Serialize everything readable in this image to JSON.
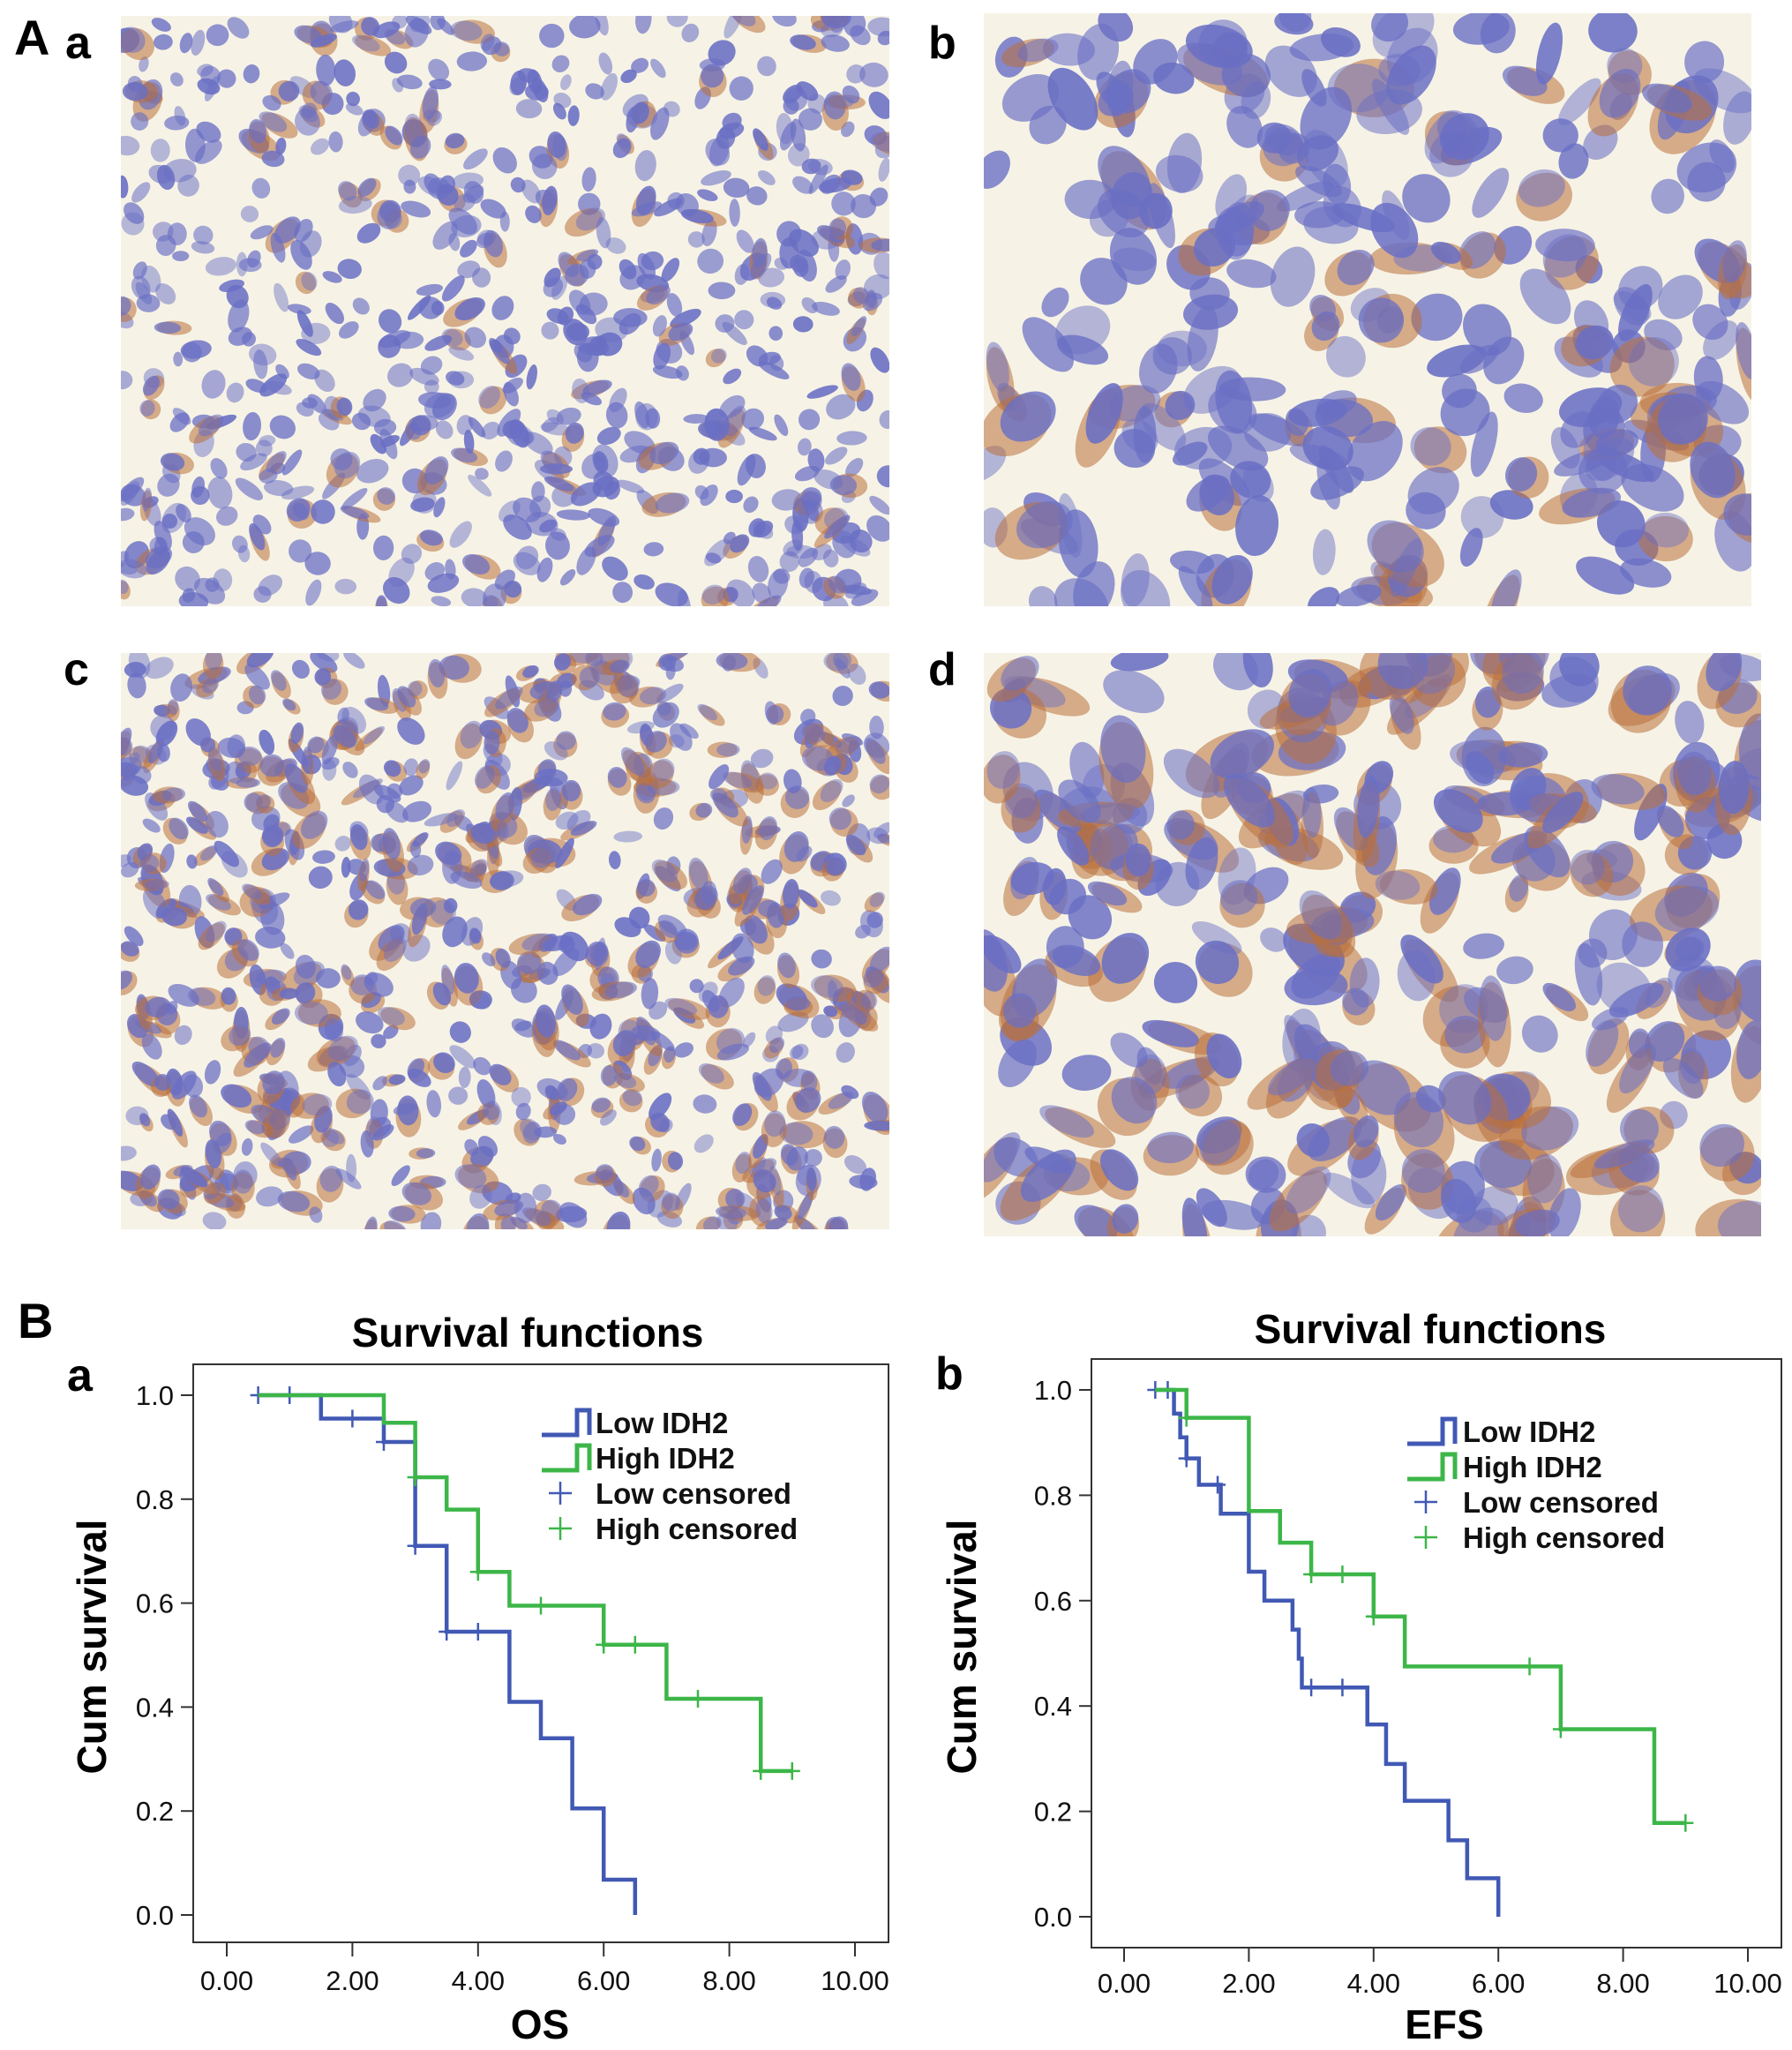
{
  "figure": {
    "panel_A_label": "A",
    "panel_B_label": "B",
    "micrographs": [
      {
        "label": "a",
        "brown_fraction": 0.15,
        "cell_scale": "small"
      },
      {
        "label": "b",
        "brown_fraction": 0.2,
        "cell_scale": "large"
      },
      {
        "label": "c",
        "brown_fraction": 0.55,
        "cell_scale": "small"
      },
      {
        "label": "d",
        "brown_fraction": 0.6,
        "cell_scale": "large"
      }
    ]
  },
  "colors": {
    "low": "#4159b4",
    "high": "#3cb648",
    "bg": "#f6f3e6",
    "nucleus": "#6a6fc4",
    "brown": "#b9703a"
  },
  "chart_data": [
    {
      "type": "line",
      "panel": "a",
      "title": "Survival functions",
      "xlabel": "OS",
      "ylabel": "Cum survival",
      "xlim": [
        0,
        10
      ],
      "ylim": [
        0,
        1
      ],
      "xticks": [
        "0.00",
        "2.00",
        "4.00",
        "6.00",
        "8.00",
        "10.00"
      ],
      "yticks": [
        "0.0",
        "0.2",
        "0.4",
        "0.6",
        "0.8",
        "1.0"
      ],
      "legend": [
        "Low IDH2",
        "High IDH2",
        "Low  censored",
        "High  censored"
      ],
      "legend_position": "top-right",
      "series": [
        {
          "name": "Low IDH2",
          "steps": [
            [
              0.5,
              1.0
            ],
            [
              1.5,
              0.955
            ],
            [
              2.5,
              0.91
            ],
            [
              3.0,
              0.71
            ],
            [
              3.5,
              0.545
            ],
            [
              4.5,
              0.41
            ],
            [
              5.0,
              0.34
            ],
            [
              5.5,
              0.205
            ],
            [
              6.0,
              0.068
            ],
            [
              6.5,
              0.0
            ]
          ],
          "end": 6.5,
          "censored": [
            0.5,
            1.0,
            2.0,
            2.5,
            3.0,
            3.5,
            4.0
          ]
        },
        {
          "name": "High IDH2",
          "steps": [
            [
              0.5,
              1.0
            ],
            [
              2.5,
              0.947
            ],
            [
              3.0,
              0.842
            ],
            [
              3.5,
              0.78
            ],
            [
              4.0,
              0.66
            ],
            [
              4.5,
              0.595
            ],
            [
              6.0,
              0.52
            ],
            [
              7.0,
              0.416
            ],
            [
              8.5,
              0.277
            ]
          ],
          "end": 9.0,
          "censored": [
            3.0,
            4.0,
            5.0,
            6.0,
            6.5,
            7.5,
            8.5,
            9.0
          ]
        }
      ]
    },
    {
      "type": "line",
      "panel": "b",
      "title": "Survival functions",
      "xlabel": "EFS",
      "ylabel": "Cum survival",
      "xlim": [
        0,
        10
      ],
      "ylim": [
        0,
        1
      ],
      "xticks": [
        "0.00",
        "2.00",
        "4.00",
        "6.00",
        "8.00",
        "10.00"
      ],
      "yticks": [
        "0.0",
        "0.2",
        "0.4",
        "0.6",
        "0.8",
        "1.0"
      ],
      "legend": [
        "Low IDH2",
        "High IDH2",
        "Low  censored",
        "High  censored"
      ],
      "legend_position": "top-right",
      "series": [
        {
          "name": "Low IDH2",
          "steps": [
            [
              0.5,
              1.0
            ],
            [
              0.8,
              0.955
            ],
            [
              0.9,
              0.91
            ],
            [
              1.0,
              0.87
            ],
            [
              1.2,
              0.82
            ],
            [
              1.55,
              0.765
            ],
            [
              2.0,
              0.655
            ],
            [
              2.25,
              0.6
            ],
            [
              2.7,
              0.545
            ],
            [
              2.8,
              0.49
            ],
            [
              2.85,
              0.435
            ],
            [
              3.9,
              0.365
            ],
            [
              4.2,
              0.29
            ],
            [
              4.5,
              0.22
            ],
            [
              5.2,
              0.145
            ],
            [
              5.5,
              0.073
            ],
            [
              6.0,
              0.0
            ]
          ],
          "end": 6.0,
          "censored": [
            0.5,
            0.7,
            1.0,
            1.5,
            3.0,
            3.5
          ]
        },
        {
          "name": "High IDH2",
          "steps": [
            [
              0.5,
              1.0
            ],
            [
              1.0,
              0.947
            ],
            [
              2.0,
              0.77
            ],
            [
              2.5,
              0.71
            ],
            [
              3.0,
              0.65
            ],
            [
              4.0,
              0.57
            ],
            [
              4.5,
              0.475
            ],
            [
              7.0,
              0.356
            ],
            [
              8.5,
              0.178
            ]
          ],
          "end": 9.0,
          "censored": [
            1.0,
            3.0,
            3.5,
            4.0,
            6.5,
            7.0,
            9.0
          ]
        }
      ]
    }
  ]
}
